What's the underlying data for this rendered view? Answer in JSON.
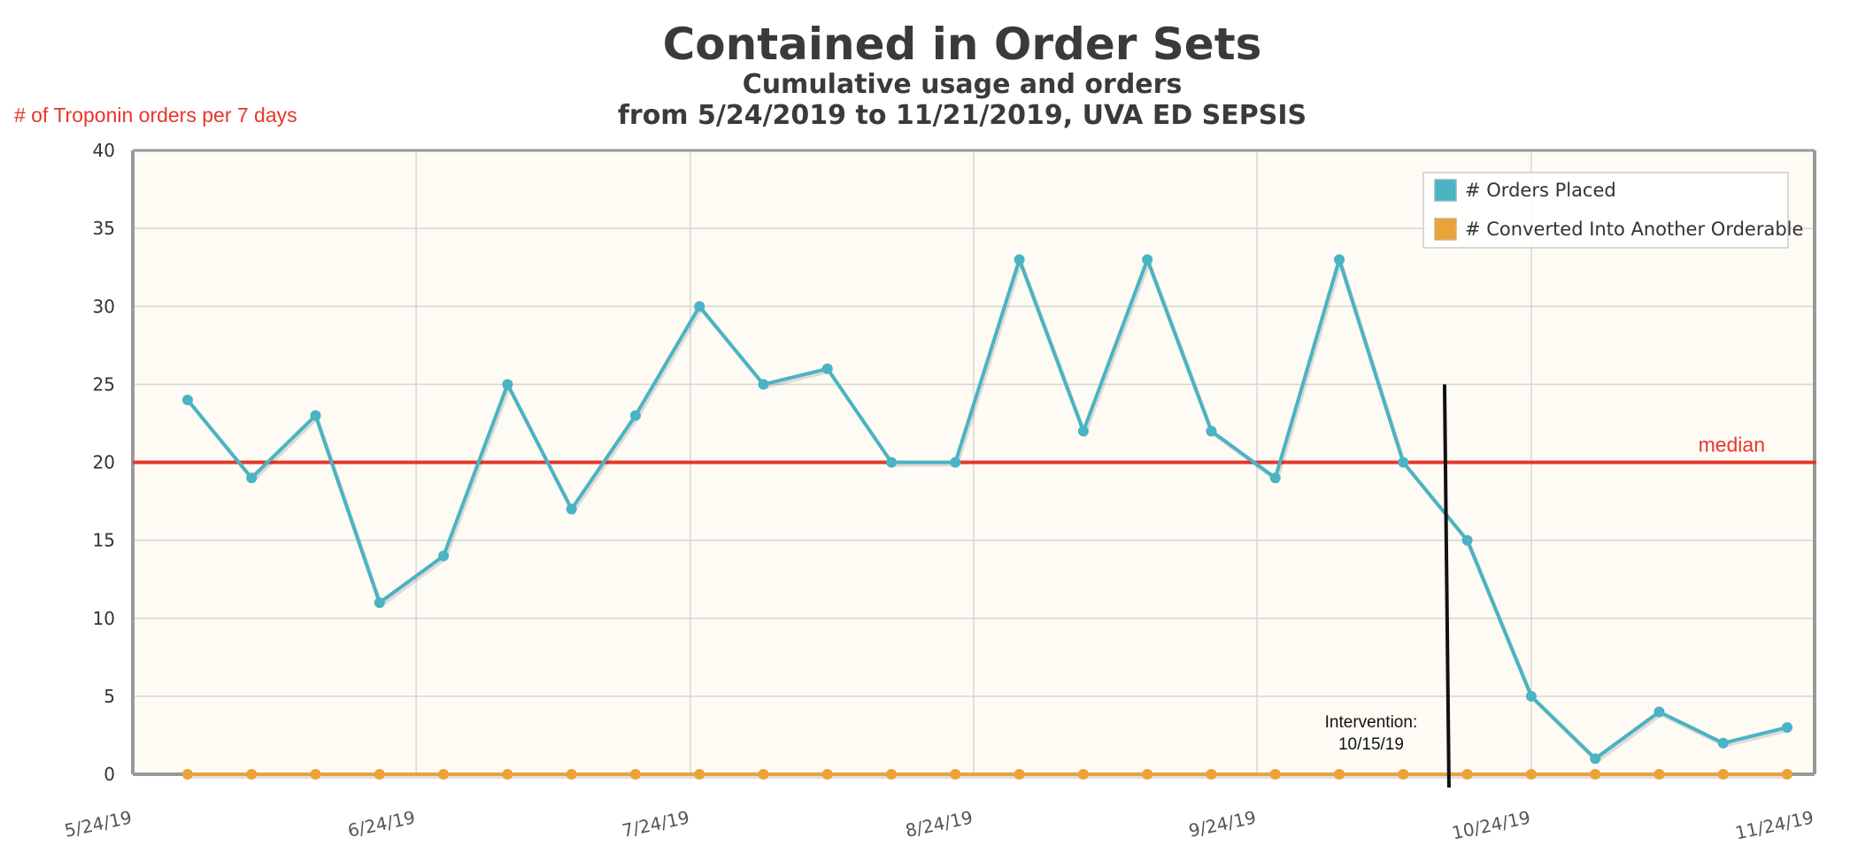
{
  "chart_data": {
    "type": "line",
    "title": "Contained in Order Sets",
    "subtitle_line1": "Cumulative usage and orders",
    "subtitle_line2": "from 5/24/2019 to 11/21/2019, UVA ED SEPSIS",
    "ylabel": "# of Troponin orders per 7 days",
    "ylim": [
      0,
      40
    ],
    "yticks": [
      0,
      5,
      10,
      15,
      20,
      25,
      30,
      35,
      40
    ],
    "xlim": [
      "2019-05-24",
      "2019-11-24"
    ],
    "xtick_labels": [
      "5/24/19",
      "6/24/19",
      "7/24/19",
      "8/24/19",
      "9/24/19",
      "10/24/19",
      "11/24/19"
    ],
    "xtick_dates": [
      "2019-05-24",
      "2019-06-24",
      "2019-07-24",
      "2019-08-24",
      "2019-09-24",
      "2019-10-24",
      "2019-11-24"
    ],
    "grid": true,
    "legend_position": "top-right",
    "series": [
      {
        "name": "# Orders Placed",
        "color": "#4ab3c4",
        "x": [
          "2019-05-30",
          "2019-06-06",
          "2019-06-13",
          "2019-06-20",
          "2019-06-27",
          "2019-07-04",
          "2019-07-11",
          "2019-07-18",
          "2019-07-25",
          "2019-08-01",
          "2019-08-08",
          "2019-08-15",
          "2019-08-22",
          "2019-08-29",
          "2019-09-05",
          "2019-09-12",
          "2019-09-19",
          "2019-09-26",
          "2019-10-03",
          "2019-10-10",
          "2019-10-17",
          "2019-10-24",
          "2019-10-31",
          "2019-11-07",
          "2019-11-14",
          "2019-11-21"
        ],
        "values": [
          24,
          19,
          23,
          11,
          14,
          25,
          17,
          23,
          30,
          25,
          26,
          20,
          20,
          33,
          22,
          33,
          22,
          19,
          33,
          20,
          15,
          5,
          1,
          4,
          2,
          3
        ]
      },
      {
        "name": "# Converted Into Another Orderable",
        "color": "#e9a33a",
        "x": [
          "2019-05-30",
          "2019-06-06",
          "2019-06-13",
          "2019-06-20",
          "2019-06-27",
          "2019-07-04",
          "2019-07-11",
          "2019-07-18",
          "2019-07-25",
          "2019-08-01",
          "2019-08-08",
          "2019-08-15",
          "2019-08-22",
          "2019-08-29",
          "2019-09-05",
          "2019-09-12",
          "2019-09-19",
          "2019-09-26",
          "2019-10-03",
          "2019-10-10",
          "2019-10-17",
          "2019-10-24",
          "2019-10-31",
          "2019-11-07",
          "2019-11-14",
          "2019-11-21"
        ],
        "values": [
          0,
          0,
          0,
          0,
          0,
          0,
          0,
          0,
          0,
          0,
          0,
          0,
          0,
          0,
          0,
          0,
          0,
          0,
          0,
          0,
          0,
          0,
          0,
          0,
          0,
          0
        ]
      }
    ],
    "median": {
      "label": "median",
      "value": 20,
      "color": "#e8362b"
    },
    "intervention": {
      "label_line1": "Intervention:",
      "label_line2": "10/15/19",
      "date": "2019-10-15",
      "y_top": 25
    },
    "colors": {
      "plot_background": "#fdfbf3",
      "grid": "#d6d6d6",
      "axis": "#999999"
    }
  }
}
